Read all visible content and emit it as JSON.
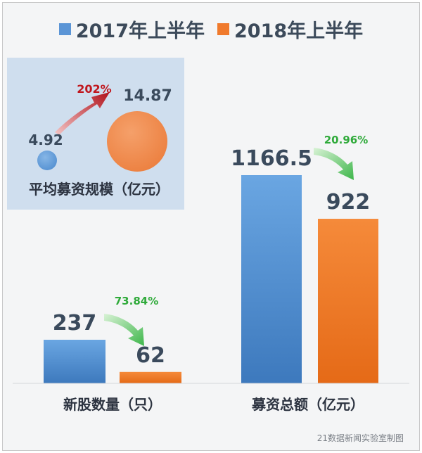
{
  "colors": {
    "s2017": "#5b95d6",
    "s2018": "#f07a2c",
    "pct_green": "#2faa3a",
    "pct_red": "#c0161d",
    "avg_2018_text": "#ef8d4d",
    "avg_2017_text": "#2e7bc0"
  },
  "chart_data": [
    {
      "type": "bar",
      "categories": [
        "新股数量（只）",
        "募资总额（亿元）"
      ],
      "series": [
        {
          "name": "2017年上半年",
          "values": [
            237,
            1166.5
          ]
        },
        {
          "name": "2018年上半年",
          "values": [
            62,
            922
          ]
        }
      ],
      "labels": {
        "s2017": [
          "237",
          "1166.5"
        ],
        "s2018": [
          "62",
          "922"
        ]
      },
      "change_labels": [
        "73.84%",
        "20.96%"
      ],
      "legend": "top-center",
      "credit": "21数据新闻实验室制图"
    },
    {
      "type": "bubble",
      "title": "平均募资规模（亿元）",
      "series": [
        {
          "name": "2017年上半年",
          "value": 4.92,
          "label": "4.92"
        },
        {
          "name": "2018年上半年",
          "value": 14.87,
          "label": "14.87"
        }
      ],
      "change_label": "202%"
    }
  ]
}
